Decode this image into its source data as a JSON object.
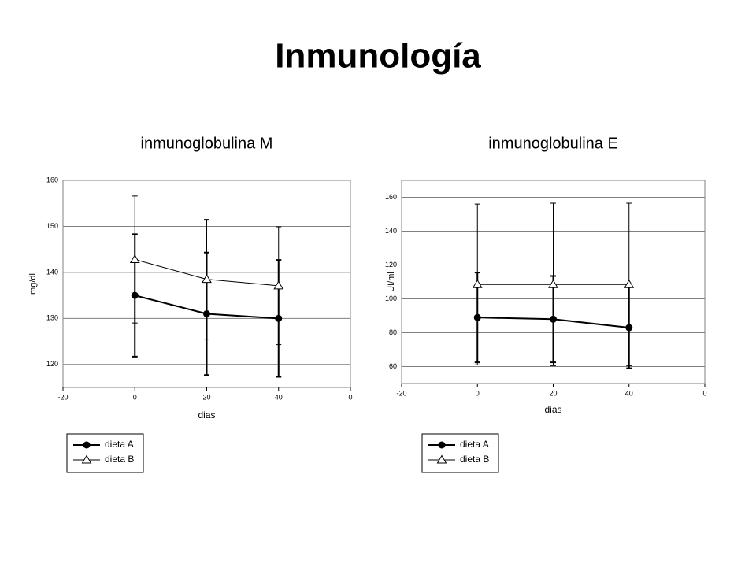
{
  "title": "Inmunología",
  "chart_data": [
    {
      "type": "line",
      "title": "inmunoglobulina M",
      "xlabel": "dias",
      "ylabel": "mg/dl",
      "x": [
        0,
        20,
        40
      ],
      "xlim": [
        -20,
        60
      ],
      "xticks": [
        -20,
        0,
        20,
        40,
        {
          "value": 60,
          "label": "0"
        }
      ],
      "ylim": [
        115,
        160
      ],
      "yticks": [
        120,
        130,
        140,
        150,
        160
      ],
      "grid": true,
      "series": [
        {
          "name": "dieta A",
          "color": "#000000",
          "marker": "circle",
          "values": [
            135,
            131,
            130
          ],
          "errors": [
            13.3,
            13.3,
            12.7
          ]
        },
        {
          "name": "dieta B",
          "color": "#000000",
          "marker": "triangle",
          "values": [
            142.8,
            138.5,
            137.1
          ],
          "errors": [
            13.8,
            13,
            12.8
          ]
        }
      ]
    },
    {
      "type": "line",
      "title": "inmunoglobulina E",
      "xlabel": "dias",
      "ylabel": "UI/ml",
      "x": [
        0,
        20,
        40
      ],
      "xlim": [
        -20,
        60
      ],
      "xticks": [
        -20,
        0,
        20,
        40,
        {
          "value": 60,
          "label": "0"
        }
      ],
      "ylim": [
        50,
        170
      ],
      "yticks": [
        60,
        80,
        100,
        120,
        140,
        160
      ],
      "grid": true,
      "series": [
        {
          "name": "dieta A",
          "color": "#000000",
          "marker": "circle",
          "values": [
            89,
            88,
            83
          ],
          "errors": [
            26.5,
            25.5,
            24
          ]
        },
        {
          "name": "dieta B",
          "color": "#000000",
          "marker": "triangle",
          "values": [
            108.5,
            108.5,
            108.5
          ],
          "errors": [
            47.5,
            48,
            48
          ]
        }
      ]
    }
  ]
}
